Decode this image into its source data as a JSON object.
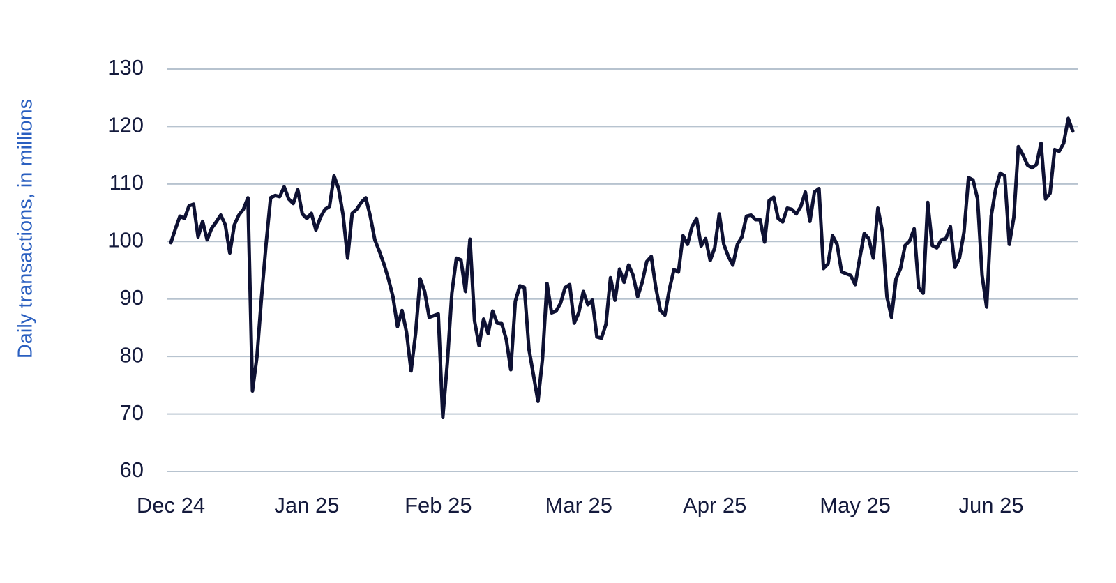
{
  "chart_data": {
    "type": "line",
    "ylabel": "Daily transactions, in millions",
    "categories": [
      "Dec 24",
      null,
      null,
      null,
      null,
      null,
      null,
      null,
      null,
      null,
      null,
      null,
      null,
      null,
      null,
      null,
      null,
      null,
      null,
      null,
      null,
      null,
      null,
      null,
      null,
      null,
      null,
      null,
      null,
      null,
      "Jan 25",
      null,
      null,
      null,
      null,
      null,
      null,
      null,
      null,
      null,
      null,
      null,
      null,
      null,
      null,
      null,
      null,
      null,
      null,
      null,
      null,
      null,
      null,
      null,
      null,
      null,
      null,
      null,
      null,
      "Feb 25",
      null,
      null,
      null,
      null,
      null,
      null,
      null,
      null,
      null,
      null,
      null,
      null,
      null,
      null,
      null,
      null,
      null,
      null,
      null,
      null,
      null,
      null,
      null,
      null,
      null,
      null,
      null,
      null,
      null,
      null,
      "Mar 25",
      null,
      null,
      null,
      null,
      null,
      null,
      null,
      null,
      null,
      null,
      null,
      null,
      null,
      null,
      null,
      null,
      null,
      null,
      null,
      null,
      null,
      null,
      null,
      null,
      null,
      null,
      null,
      null,
      null,
      "Apr 25",
      null,
      null,
      null,
      null,
      null,
      null,
      null,
      null,
      null,
      null,
      null,
      null,
      null,
      null,
      null,
      null,
      null,
      null,
      null,
      null,
      null,
      null,
      null,
      null,
      null,
      null,
      null,
      null,
      null,
      null,
      "May 25",
      null,
      null,
      null,
      null,
      null,
      null,
      null,
      null,
      null,
      null,
      null,
      null,
      null,
      null,
      null,
      null,
      null,
      null,
      null,
      null,
      null,
      null,
      null,
      null,
      null,
      null,
      null,
      null,
      null,
      "Jun 25",
      null,
      null,
      null,
      null,
      null,
      null,
      null,
      null,
      null,
      null,
      null,
      null,
      null,
      null,
      null,
      null,
      null,
      null
    ],
    "values": [
      99.8,
      102.2,
      104.4,
      104,
      106.2,
      106.5,
      100.8,
      103.5,
      100.3,
      102.3,
      103.4,
      104.6,
      102.9,
      98,
      102.9,
      104.6,
      105.6,
      107.6,
      74,
      80,
      90.3,
      99.5,
      107.6,
      108,
      107.8,
      109.5,
      107.4,
      106.6,
      109,
      104.8,
      104,
      104.9,
      102,
      104.2,
      105.6,
      106.1,
      111.4,
      109.2,
      104.6,
      97.1,
      104.9,
      105.6,
      106.8,
      107.6,
      104.4,
      100.3,
      98.3,
      96.1,
      93.5,
      90.4,
      85.2,
      88,
      84.2,
      77.5,
      84,
      93.5,
      91.3,
      86.8,
      87.1,
      87.4,
      69.4,
      78.9,
      91,
      97.1,
      96.8,
      91.3,
      100.4,
      86.2,
      81.9,
      86.5,
      84,
      87.9,
      85.8,
      85.7,
      83,
      77.7,
      89.6,
      92.3,
      92,
      81.3,
      76.8,
      72.2,
      79.6,
      92.7,
      87.6,
      87.9,
      89.3,
      92,
      92.5,
      85.8,
      87.6,
      91.3,
      89,
      89.8,
      83.4,
      83.2,
      85.6,
      93.7,
      89.8,
      95.2,
      92.9,
      95.9,
      94.1,
      90.4,
      92.9,
      96.5,
      97.4,
      92,
      88,
      87.2,
      91.7,
      95.1,
      94.7,
      101,
      99.5,
      102.6,
      104,
      99.2,
      100.5,
      96.7,
      98.9,
      104.8,
      99.5,
      97.4,
      95.9,
      99.5,
      100.8,
      104.4,
      104.6,
      103.8,
      103.8,
      99.9,
      107.1,
      107.7,
      104,
      103.4,
      105.8,
      105.6,
      104.8,
      106.1,
      108.6,
      103.5,
      108.6,
      109.2,
      95.3,
      96.1,
      101,
      99.5,
      94.7,
      94.4,
      94.1,
      92.5,
      97.1,
      101.4,
      100.5,
      97.1,
      105.8,
      101.7,
      90.4,
      86.8,
      93.5,
      95.3,
      99.3,
      100.1,
      102.2,
      92,
      91,
      106.8,
      99.3,
      98.9,
      100.3,
      100.5,
      102.6,
      95.5,
      97.1,
      101.6,
      111.1,
      110.7,
      107.4,
      94.1,
      88.6,
      104.4,
      109.2,
      111.9,
      111.4,
      99.5,
      104.2,
      116.5,
      115.1,
      113.3,
      112.8,
      113.4,
      117.1,
      107.4,
      108.4,
      116,
      115.7,
      117.1,
      121.4,
      119.2
    ],
    "color": "#0e1133",
    "ylim": [
      60,
      130
    ],
    "yticks": [
      60,
      70,
      80,
      90,
      100,
      110,
      120,
      130
    ],
    "grid": true
  }
}
